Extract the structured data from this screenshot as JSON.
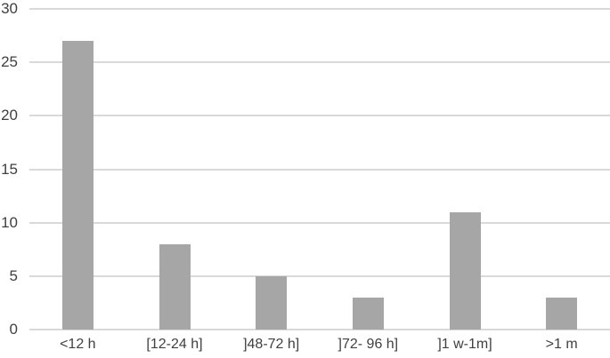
{
  "chart_data": {
    "type": "bar",
    "title": "",
    "xlabel": "",
    "ylabel": "",
    "categories": [
      "<12 h",
      "[12-24 h]",
      "]48-72 h]",
      "]72- 96 h]",
      "]1 w-1m]",
      ">1 m"
    ],
    "values": [
      27,
      8,
      5,
      3,
      11,
      3
    ],
    "ylim": [
      0,
      30
    ],
    "yticks": [
      0,
      5,
      10,
      15,
      20,
      25,
      30
    ],
    "grid": true,
    "legend": false,
    "colors": {
      "bar": "#a6a6a6",
      "gridline": "#d9d9d9",
      "axis_line": "#d9d9d9",
      "tick_text": "#404040",
      "background": "#ffffff"
    }
  }
}
